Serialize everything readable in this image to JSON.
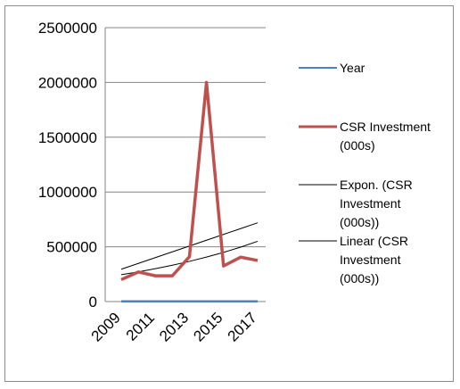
{
  "chart_data": {
    "type": "line",
    "title": "",
    "xlabel": "",
    "ylabel": "",
    "x": [
      2009,
      2010,
      2011,
      2012,
      2013,
      2014,
      2015,
      2016,
      2017
    ],
    "x_tick_labels": [
      "2009",
      "2011",
      "2013",
      "2015",
      "2017"
    ],
    "y_tick_labels": [
      "0",
      "500000",
      "1000000",
      "1500000",
      "2000000",
      "2500000"
    ],
    "ylim": [
      0,
      2500000
    ],
    "grid": true,
    "legend_position": "right",
    "series": [
      {
        "name": "Year",
        "color": "#4f81bd",
        "values": [
          2009,
          2010,
          2011,
          2012,
          2013,
          2014,
          2015,
          2016,
          2017
        ]
      },
      {
        "name": "CSR Investment (000s)",
        "color": "#c0504d",
        "values": [
          200000,
          270000,
          235000,
          235000,
          410000,
          2000000,
          325000,
          405000,
          375000
        ]
      }
    ],
    "trendlines": [
      {
        "name": "Expon. (CSR Investment (000s))",
        "color": "#000000",
        "values": [
          245000,
          271000,
          300000,
          332000,
          367000,
          406000,
          449000,
          497000,
          550000
        ]
      },
      {
        "name": "Linear (CSR Investment (000s))",
        "color": "#000000",
        "values": [
          295000,
          348000,
          401000,
          454000,
          507000,
          560000,
          613000,
          666000,
          719000
        ]
      }
    ],
    "legend": [
      {
        "lines": [
          "Year"
        ]
      },
      {
        "lines": [
          "CSR Investment",
          "(000s)"
        ]
      },
      {
        "lines": [
          "Expon. (CSR",
          "Investment",
          "(000s))"
        ]
      },
      {
        "lines": [
          "Linear (CSR",
          "Investment",
          "(000s))"
        ]
      }
    ]
  }
}
